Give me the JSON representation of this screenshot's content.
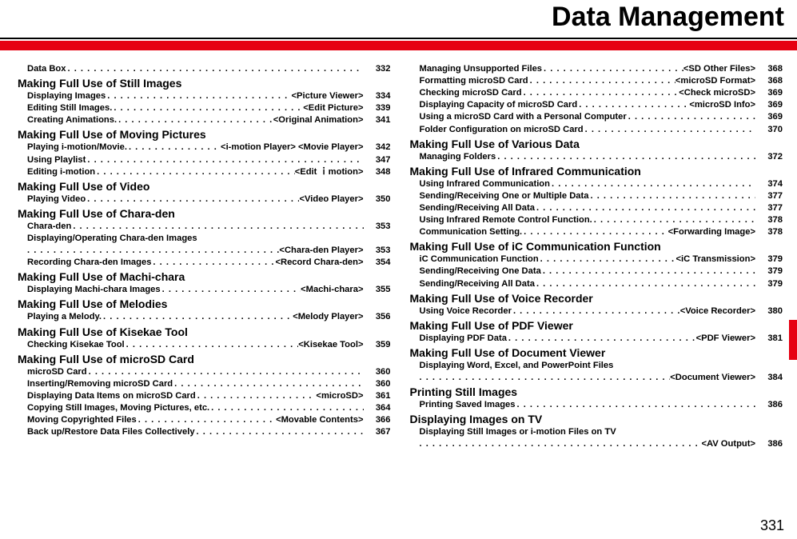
{
  "title": {
    "text": "Data Management",
    "fontsize": 34
  },
  "page_number": "331",
  "colors": {
    "accent": "#e60012",
    "text": "#000000",
    "background": "#ffffff"
  },
  "left": {
    "first_row": {
      "label": "Data Box",
      "page": "332"
    },
    "sections": [
      {
        "head": "Making Full Use of Still Images",
        "rows": [
          {
            "label": "Displaying Images",
            "tag": "<Picture Viewer>",
            "page": "334"
          },
          {
            "label": "Editing Still Images.",
            "tag": "<Edit Picture>",
            "page": "339"
          },
          {
            "label": "Creating Animations.",
            "tag": "<Original Animation>",
            "page": "341"
          }
        ]
      },
      {
        "head": "Making Full Use of Moving Pictures",
        "rows": [
          {
            "label": "Playing i-motion/Movie.",
            "tag": "<i-motion Player> <Movie Player>",
            "page": "342"
          },
          {
            "label": "Using Playlist",
            "tag": "",
            "page": "347"
          },
          {
            "label": "Editing i-motion",
            "tag": "<Edit ｉmotion>",
            "page": "348"
          }
        ]
      },
      {
        "head": "Making Full Use of Video",
        "rows": [
          {
            "label": "Playing Video",
            "tag": "<Video Player>",
            "page": "350"
          }
        ]
      },
      {
        "head": "Making Full Use of Chara-den",
        "rows": [
          {
            "label": "Chara-den",
            "tag": "",
            "page": "353"
          },
          {
            "label": "Displaying/Operating Chara-den Images",
            "cont_tag": "<Chara-den Player>",
            "cont_page": "353"
          },
          {
            "label": "Recording Chara-den Images",
            "tag": "<Record Chara-den>",
            "page": "354"
          }
        ]
      },
      {
        "head": "Making Full Use of Machi-chara",
        "rows": [
          {
            "label": "Displaying Machi-chara Images",
            "tag": "<Machi-chara>",
            "page": "355"
          }
        ]
      },
      {
        "head": "Making Full Use of Melodies",
        "rows": [
          {
            "label": "Playing a Melody.",
            "tag": "<Melody Player>",
            "page": "356"
          }
        ]
      },
      {
        "head": "Making Full Use of Kisekae Tool",
        "rows": [
          {
            "label": "Checking Kisekae Tool",
            "tag": "<Kisekae Tool>",
            "page": "359"
          }
        ]
      },
      {
        "head": "Making Full Use of microSD Card",
        "rows": [
          {
            "label": "microSD Card",
            "tag": "",
            "page": "360"
          },
          {
            "label": "Inserting/Removing microSD Card",
            "tag": "",
            "page": "360"
          },
          {
            "label": "Displaying Data Items on microSD Card",
            "tag": "<microSD>",
            "page": "361"
          },
          {
            "label": "Copying Still Images, Moving Pictures, etc.",
            "tag": "",
            "page": "364"
          },
          {
            "label": "Moving Copyrighted Files",
            "tag": "<Movable Contents>",
            "page": "366"
          },
          {
            "label": "Back up/Restore Data Files Collectively",
            "tag": "",
            "page": "367"
          }
        ]
      }
    ]
  },
  "right": {
    "lead_rows": [
      {
        "label": "Managing Unsupported Files",
        "tag": "<SD Other Files>",
        "page": "368"
      },
      {
        "label": "Formatting microSD Card",
        "tag": "<microSD Format>",
        "page": "368"
      },
      {
        "label": "Checking microSD Card",
        "tag": "<Check microSD>",
        "page": "369"
      },
      {
        "label": "Displaying Capacity of microSD Card",
        "tag": "<microSD Info>",
        "page": "369"
      },
      {
        "label": "Using a microSD Card with a Personal Computer",
        "tag": "",
        "page": "369"
      },
      {
        "label": "Folder Configuration on microSD Card",
        "tag": "",
        "page": "370"
      }
    ],
    "sections": [
      {
        "head": "Making Full Use of Various Data",
        "rows": [
          {
            "label": "Managing Folders",
            "tag": "",
            "page": "372"
          }
        ]
      },
      {
        "head": "Making Full Use of Infrared Communication",
        "rows": [
          {
            "label": "Using Infrared Communication",
            "tag": "",
            "page": "374"
          },
          {
            "label": "Sending/Receiving One or Multiple Data",
            "tag": "",
            "page": "377"
          },
          {
            "label": "Sending/Receiving All Data",
            "tag": "",
            "page": "377"
          },
          {
            "label": "Using Infrared Remote Control Function.",
            "tag": "",
            "page": "378"
          },
          {
            "label": "Communication Setting.",
            "tag": "<Forwarding Image>",
            "page": "378"
          }
        ]
      },
      {
        "head": "Making Full Use of iC Communication Function",
        "rows": [
          {
            "label": "iC Communication Function",
            "tag": "<iC Transmission>",
            "page": "379"
          },
          {
            "label": "Sending/Receiving One Data",
            "tag": "",
            "page": "379"
          },
          {
            "label": "Sending/Receiving All Data",
            "tag": "",
            "page": "379"
          }
        ]
      },
      {
        "head": "Making Full Use of Voice Recorder",
        "rows": [
          {
            "label": "Using Voice Recorder",
            "tag": "<Voice Recorder>",
            "page": "380"
          }
        ]
      },
      {
        "head": "Making Full Use of PDF Viewer",
        "rows": [
          {
            "label": "Displaying PDF Data",
            "tag": "<PDF Viewer>",
            "page": "381"
          }
        ]
      },
      {
        "head": "Making Full Use of Document Viewer",
        "rows": [
          {
            "label": "Displaying Word, Excel, and PowerPoint Files",
            "cont_tag": "<Document Viewer>",
            "cont_page": "384"
          }
        ]
      },
      {
        "head": "Printing Still Images",
        "rows": [
          {
            "label": "Printing Saved Images",
            "tag": "",
            "page": "386"
          }
        ]
      },
      {
        "head": "Displaying Images on TV",
        "rows": [
          {
            "label": "Displaying Still Images or i-motion Files on TV",
            "cont_tag": "<AV Output>",
            "cont_page": "386"
          }
        ]
      }
    ]
  }
}
